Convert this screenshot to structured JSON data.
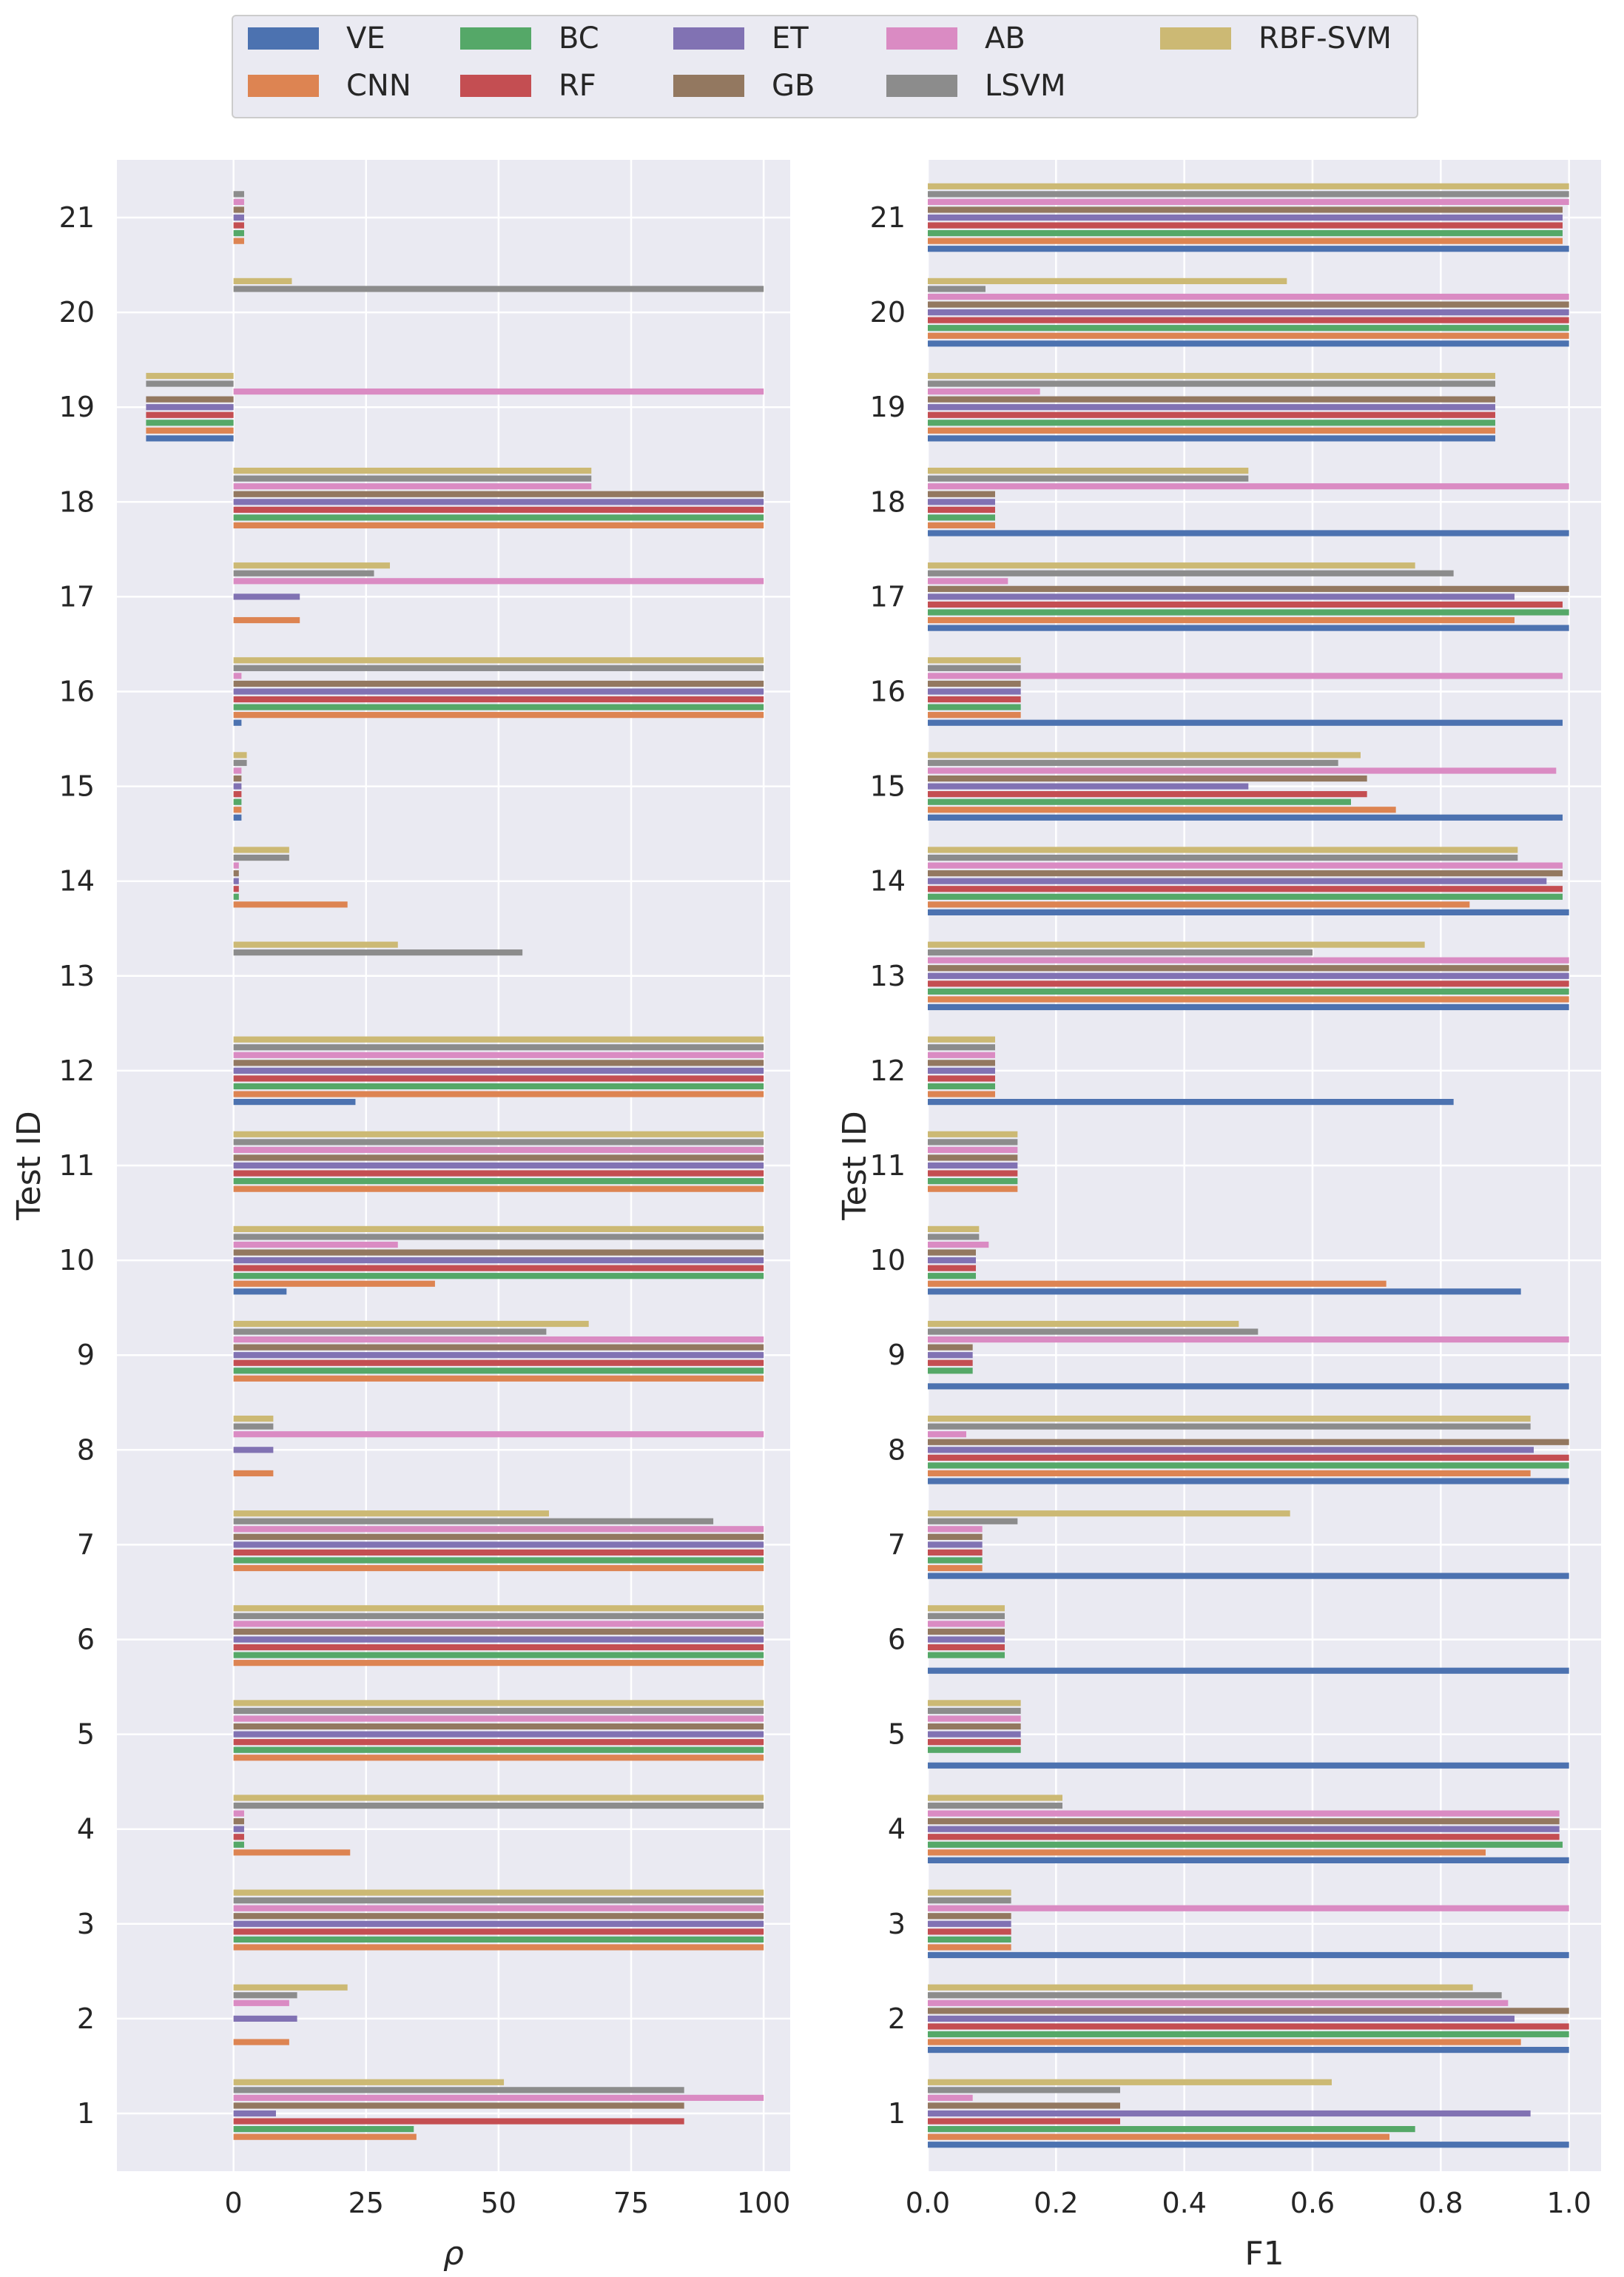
{
  "colors": {
    "VE": "#4c72b0",
    "CNN": "#dd8452",
    "BC": "#55a868",
    "RF": "#c44e52",
    "ET": "#8172b3",
    "GB": "#937860",
    "AB": "#da8bc3",
    "LSVM": "#8c8c8c",
    "RBF-SVM": "#ccb974",
    "panel_bg": "#eaeaf2",
    "grid": "#ffffff"
  },
  "legend": {
    "items": [
      "VE",
      "CNN",
      "BC",
      "RF",
      "ET",
      "GB",
      "AB",
      "LSVM",
      "RBF-SVM"
    ]
  },
  "chart_data": [
    {
      "type": "bar",
      "orientation": "horizontal",
      "xlabel": "ρ",
      "ylabel": "Test ID",
      "xlim": [
        -22,
        105
      ],
      "xticks": [
        0,
        25,
        50,
        75,
        100
      ],
      "xtick_labels": [
        "0",
        "25",
        "50",
        "75",
        "100"
      ],
      "categories": [
        "1",
        "2",
        "3",
        "4",
        "5",
        "6",
        "7",
        "8",
        "9",
        "10",
        "11",
        "12",
        "13",
        "14",
        "15",
        "16",
        "17",
        "18",
        "19",
        "20",
        "21"
      ],
      "series": [
        {
          "name": "VE",
          "values": [
            0,
            0,
            0,
            0,
            0,
            0,
            0,
            0,
            0,
            10,
            0,
            23,
            0,
            0,
            1.5,
            1.5,
            0,
            0,
            -16.5,
            0,
            0
          ]
        },
        {
          "name": "CNN",
          "values": [
            34.5,
            10.5,
            100,
            22,
            100,
            100,
            100,
            7.5,
            100,
            38,
            100,
            100,
            0,
            21.5,
            1.5,
            100,
            12.5,
            100,
            -16.5,
            0,
            2
          ]
        },
        {
          "name": "BC",
          "values": [
            34,
            0,
            100,
            2,
            100,
            100,
            100,
            0,
            100,
            100,
            100,
            100,
            0,
            1,
            1.5,
            100,
            0,
            100,
            -16.5,
            0,
            2
          ]
        },
        {
          "name": "RF",
          "values": [
            85,
            0,
            100,
            2,
            100,
            100,
            100,
            0,
            100,
            100,
            100,
            100,
            0,
            1,
            1.5,
            100,
            0,
            100,
            -16.5,
            0,
            2
          ]
        },
        {
          "name": "ET",
          "values": [
            8,
            12,
            100,
            2,
            100,
            100,
            100,
            7.5,
            100,
            100,
            100,
            100,
            0,
            1,
            1.5,
            100,
            12.5,
            100,
            -16.5,
            0,
            2
          ]
        },
        {
          "name": "GB",
          "values": [
            85,
            0,
            100,
            2,
            100,
            100,
            100,
            0,
            100,
            100,
            100,
            100,
            0,
            1,
            1.5,
            100,
            0,
            100,
            -16.5,
            0,
            2
          ]
        },
        {
          "name": "AB",
          "values": [
            100,
            10.5,
            100,
            2,
            100,
            100,
            100,
            100,
            100,
            31,
            100,
            100,
            0,
            1,
            1.5,
            1.5,
            100,
            67.5,
            100,
            0,
            2
          ]
        },
        {
          "name": "LSVM",
          "values": [
            85,
            12,
            100,
            100,
            100,
            100,
            90.5,
            7.5,
            59,
            100,
            100,
            100,
            54.5,
            10.5,
            2.5,
            100,
            26.5,
            67.5,
            -16.5,
            100,
            2
          ]
        },
        {
          "name": "RBF-SVM",
          "values": [
            51,
            21.5,
            100,
            100,
            100,
            100,
            59.5,
            7.5,
            67,
            100,
            100,
            100,
            31,
            10.5,
            2.5,
            100,
            29.5,
            67.5,
            -16.5,
            11,
            0
          ]
        }
      ]
    },
    {
      "type": "bar",
      "orientation": "horizontal",
      "xlabel": "F1",
      "ylabel": "Test ID",
      "xlim": [
        0,
        1.05
      ],
      "xticks": [
        0,
        0.2,
        0.4,
        0.6,
        0.8,
        1.0
      ],
      "xtick_labels": [
        "0.0",
        "0.2",
        "0.4",
        "0.6",
        "0.8",
        "1.0"
      ],
      "categories": [
        "1",
        "2",
        "3",
        "4",
        "5",
        "6",
        "7",
        "8",
        "9",
        "10",
        "11",
        "12",
        "13",
        "14",
        "15",
        "16",
        "17",
        "18",
        "19",
        "20",
        "21"
      ],
      "series": [
        {
          "name": "VE",
          "values": [
            1.0,
            1.0,
            1.0,
            1.0,
            1.0,
            1.0,
            1.0,
            1.0,
            1.0,
            0.925,
            0,
            0.82,
            1.0,
            1.0,
            0.99,
            0.99,
            1.0,
            1.0,
            0.885,
            1.0,
            1.0
          ]
        },
        {
          "name": "CNN",
          "values": [
            0.72,
            0.925,
            0.13,
            0.87,
            0,
            0,
            0.085,
            0.94,
            0,
            0.715,
            0.14,
            0.105,
            1.0,
            0.845,
            0.73,
            0.145,
            0.915,
            0.105,
            0.885,
            1.0,
            0.99
          ]
        },
        {
          "name": "BC",
          "values": [
            0.76,
            1.0,
            0.13,
            0.99,
            0.145,
            0.12,
            0.085,
            1.0,
            0.07,
            0.075,
            0.14,
            0.105,
            1.0,
            0.99,
            0.66,
            0.145,
            1.0,
            0.105,
            0.885,
            1.0,
            0.99
          ]
        },
        {
          "name": "RF",
          "values": [
            0.3,
            1.0,
            0.13,
            0.985,
            0.145,
            0.12,
            0.085,
            1.0,
            0.07,
            0.075,
            0.14,
            0.105,
            1.0,
            0.99,
            0.685,
            0.145,
            0.99,
            0.105,
            0.885,
            1.0,
            0.99
          ]
        },
        {
          "name": "ET",
          "values": [
            0.94,
            0.915,
            0.13,
            0.985,
            0.145,
            0.12,
            0.085,
            0.945,
            0.07,
            0.075,
            0.14,
            0.105,
            1.0,
            0.965,
            0.5,
            0.145,
            0.915,
            0.105,
            0.885,
            1.0,
            0.99
          ]
        },
        {
          "name": "GB",
          "values": [
            0.3,
            1.0,
            0.13,
            0.985,
            0.145,
            0.12,
            0.085,
            1.0,
            0.07,
            0.075,
            0.14,
            0.105,
            1.0,
            0.99,
            0.685,
            0.145,
            1.0,
            0.105,
            0.885,
            1.0,
            0.99
          ]
        },
        {
          "name": "AB",
          "values": [
            0.07,
            0.905,
            1.0,
            0.985,
            0.145,
            0.12,
            0.085,
            0.06,
            1.0,
            0.095,
            0.14,
            0.105,
            1.0,
            0.99,
            0.98,
            0.99,
            0.125,
            1.0,
            0.175,
            1.0,
            1.0
          ]
        },
        {
          "name": "LSVM",
          "values": [
            0.3,
            0.895,
            0.13,
            0.21,
            0.145,
            0.12,
            0.14,
            0.94,
            0.515,
            0.08,
            0.14,
            0.105,
            0.6,
            0.92,
            0.64,
            0.145,
            0.82,
            0.5,
            0.885,
            0.09,
            1.0
          ]
        },
        {
          "name": "RBF-SVM",
          "values": [
            0.63,
            0.85,
            0.13,
            0.21,
            0.145,
            0.12,
            0.565,
            0.94,
            0.485,
            0.08,
            0.14,
            0.105,
            0.775,
            0.92,
            0.675,
            0.145,
            0.76,
            0.5,
            0.885,
            0.56,
            1.0
          ]
        }
      ]
    }
  ]
}
